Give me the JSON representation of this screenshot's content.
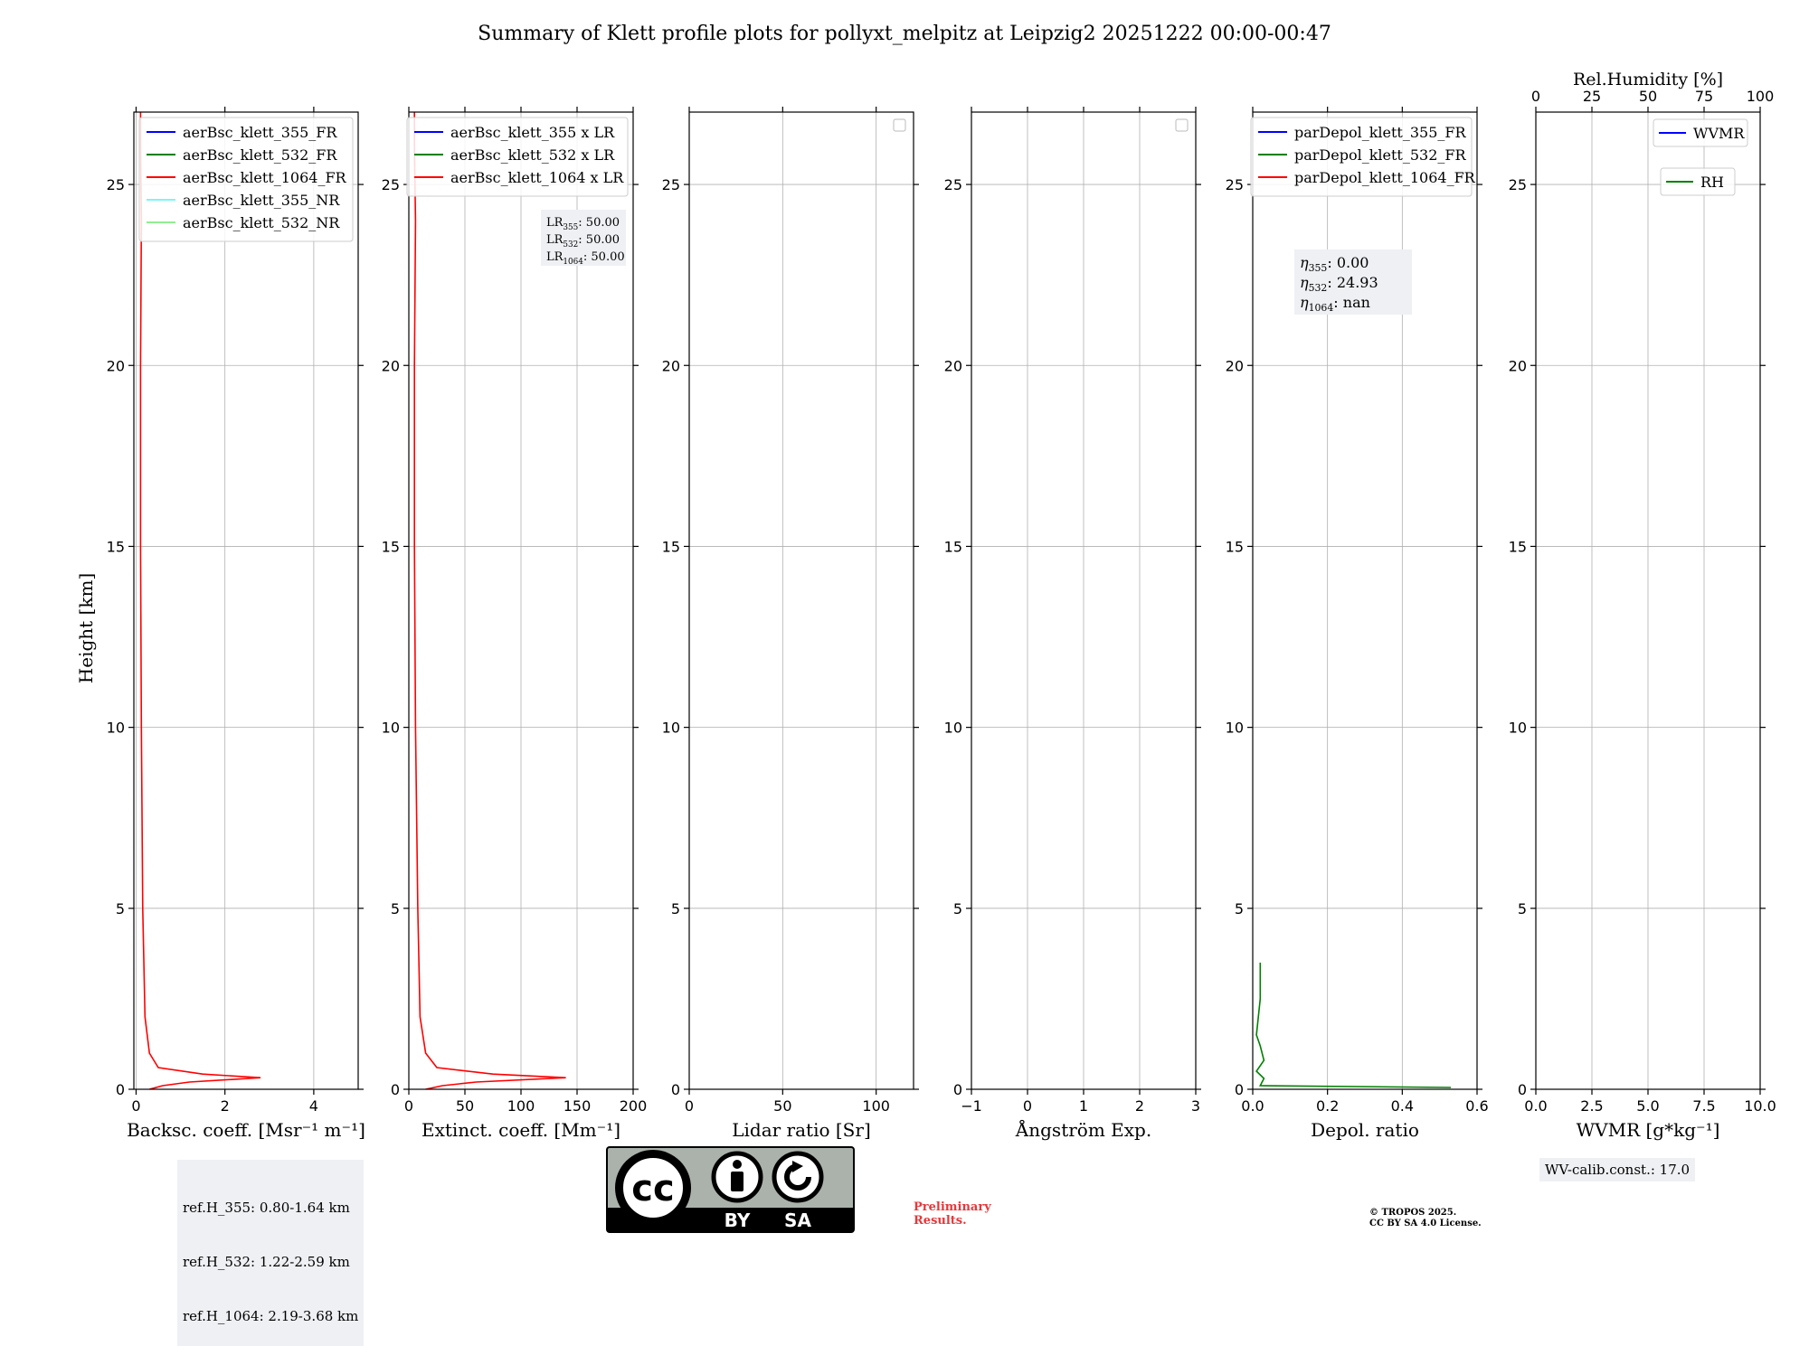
{
  "title": "Summary of Klett profile plots for pollyxt_melpitz at Leipzig2 20251222 00:00-00:47",
  "y_axis": {
    "label": "Height [km]",
    "range": [
      0,
      27
    ],
    "ticks": [
      0,
      5,
      10,
      15,
      20,
      25
    ]
  },
  "chart_data": [
    {
      "type": "line",
      "id": "backscatter",
      "xlabel": "Backsc. coeff. [Msr⁻¹ m⁻¹]",
      "xlim": [
        -0.05,
        5
      ],
      "xticks": [
        0,
        2,
        4
      ],
      "legend": {
        "placement": "top-right",
        "entries": [
          {
            "name": "aerBsc_klett_355_FR",
            "color": "#0000ff"
          },
          {
            "name": "aerBsc_klett_532_FR",
            "color": "#008000"
          },
          {
            "name": "aerBsc_klett_1064_FR",
            "color": "#ff0000"
          },
          {
            "name": "aerBsc_klett_355_NR",
            "color": "#7ff5f5"
          },
          {
            "name": "aerBsc_klett_532_NR",
            "color": "#90ee90"
          }
        ]
      },
      "series": [
        {
          "name": "aerBsc_klett_1064_FR",
          "color": "#ff0000",
          "x": [
            0.3,
            0.6,
            1.2,
            2.8,
            1.5,
            0.5,
            0.3,
            0.2,
            0.15,
            0.12,
            0.1,
            0.1,
            0.12,
            0.1,
            0.1
          ],
          "y": [
            0.0,
            0.1,
            0.2,
            0.32,
            0.42,
            0.6,
            1.0,
            2.0,
            5.0,
            10.0,
            15.0,
            20.0,
            24.0,
            26.0,
            27.0
          ]
        }
      ]
    },
    {
      "type": "line",
      "id": "extinction",
      "xlabel": "Extinct. coeff. [Mm⁻¹]",
      "xlim": [
        0,
        200
      ],
      "xticks": [
        0,
        50,
        100,
        150,
        200
      ],
      "legend": {
        "placement": "top-right",
        "entries": [
          {
            "name": "aerBsc_klett_355 x LR",
            "color": "#0000ff"
          },
          {
            "name": "aerBsc_klett_532 x LR",
            "color": "#008000"
          },
          {
            "name": "aerBsc_klett_1064 x LR",
            "color": "#ff0000"
          }
        ]
      },
      "annotation": [
        {
          "label": "LR",
          "sub": "355",
          "value": ": 50.00"
        },
        {
          "label": "LR",
          "sub": "532",
          "value": ": 50.00"
        },
        {
          "label": "LR",
          "sub": "1064",
          "value": ": 50.00"
        }
      ],
      "series": [
        {
          "name": "aerBsc_klett_1064 x LR",
          "color": "#ff0000",
          "x": [
            15,
            30,
            60,
            140,
            75,
            25,
            15,
            10,
            8,
            6,
            5,
            5,
            6,
            5,
            5
          ],
          "y": [
            0.0,
            0.1,
            0.2,
            0.32,
            0.42,
            0.6,
            1.0,
            2.0,
            5.0,
            10.0,
            15.0,
            20.0,
            24.0,
            26.0,
            27.0
          ]
        }
      ]
    },
    {
      "type": "line",
      "id": "lidar_ratio",
      "xlabel": "Lidar ratio [Sr]",
      "xlim": [
        0,
        120
      ],
      "xticks": [
        0,
        50,
        100
      ],
      "series": []
    },
    {
      "type": "line",
      "id": "angstrom",
      "xlabel": "Ångström Exp.",
      "xlim": [
        -1,
        3
      ],
      "xticks": [
        -1,
        0,
        1,
        2,
        3
      ],
      "series": []
    },
    {
      "type": "line",
      "id": "depol",
      "xlabel": "Depol. ratio",
      "xlim": [
        0,
        0.6
      ],
      "xticks": [
        "0.0",
        "0.2",
        "0.4",
        "0.6"
      ],
      "legend": {
        "placement": "top-right",
        "entries": [
          {
            "name": "parDepol_klett_355_FR",
            "color": "#0000ff"
          },
          {
            "name": "parDepol_klett_532_FR",
            "color": "#008000"
          },
          {
            "name": "parDepol_klett_1064_FR",
            "color": "#ff0000"
          }
        ]
      },
      "annotation": [
        {
          "label": "η",
          "sub": "355",
          "value": ": 0.00"
        },
        {
          "label": "η",
          "sub": "532",
          "value": ": 24.93"
        },
        {
          "label": "η",
          "sub": "1064",
          "value": ": nan"
        }
      ],
      "series": [
        {
          "name": "parDepol_klett_532_FR",
          "color": "#008000",
          "x": [
            0.53,
            0.02,
            0.03,
            0.01,
            0.03,
            0.02,
            0.01,
            0.02,
            0.02
          ],
          "y": [
            0.05,
            0.1,
            0.3,
            0.5,
            0.8,
            1.2,
            1.5,
            2.5,
            3.5
          ]
        }
      ]
    },
    {
      "type": "line",
      "id": "wvmr",
      "xlabel": "WVMR [g*kg⁻¹]",
      "xlim": [
        0,
        10
      ],
      "xticks": [
        "0.0",
        "2.5",
        "5.0",
        "7.5",
        "10.0"
      ],
      "top_xlabel": "Rel.Humidity [%]",
      "top_xlim": [
        0,
        100
      ],
      "top_xticks": [
        0,
        25,
        50,
        75,
        100
      ],
      "legend": {
        "placement": "top-right",
        "entries": [
          {
            "name": "WVMR",
            "color": "#0000ff"
          },
          {
            "name": "RH",
            "color": "#008000"
          }
        ]
      },
      "series": []
    }
  ],
  "ref_box": [
    "ref.H_355: 0.80-1.64 km",
    "ref.H_532: 1.22-2.59 km",
    "ref.H_1064: 2.19-3.68 km"
  ],
  "wv_calib": "WV-calib.const.: 17.0",
  "preliminary": [
    "Preliminary",
    "Results."
  ],
  "copyright": [
    "© TROPOS 2025.",
    "CC BY SA 4.0 License."
  ],
  "cc_badge": {
    "main": "cc",
    "by": "BY",
    "sa": "SA"
  }
}
